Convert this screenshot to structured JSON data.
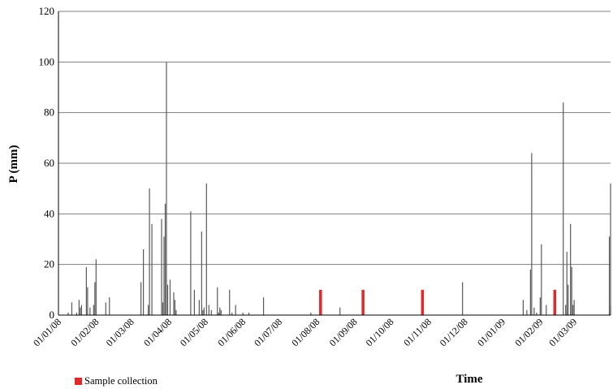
{
  "chart_data": {
    "type": "bar",
    "title": "",
    "xlabel": "Time",
    "ylabel": "P (mm)",
    "ylim": [
      0,
      120
    ],
    "yticks": [
      "0",
      "20",
      "40",
      "60",
      "80",
      "100",
      "120"
    ],
    "xlim": [
      "2008-01-01",
      "2009-03-31"
    ],
    "xticks": [
      "01/01/08",
      "01/02/08",
      "01/03/08",
      "01/04/08",
      "01/05/08",
      "01/06/08",
      "01/07/08",
      "01/08/08",
      "01/09/08",
      "01/10/08",
      "01/11/08",
      "01/12/08",
      "01/01/09",
      "01/02/09",
      "01/03/09"
    ],
    "grid": "horizontal",
    "legend_position": "bottom-left",
    "series": [
      {
        "name": "",
        "color": "#595959",
        "points": [
          [
            "2008-01-09",
            1
          ],
          [
            "2008-01-12",
            5
          ],
          [
            "2008-01-16",
            1
          ],
          [
            "2008-01-18",
            6
          ],
          [
            "2008-01-19",
            3
          ],
          [
            "2008-01-20",
            4
          ],
          [
            "2008-01-24",
            19
          ],
          [
            "2008-01-25",
            11
          ],
          [
            "2008-01-27",
            3
          ],
          [
            "2008-01-30",
            4
          ],
          [
            "2008-01-31",
            13
          ],
          [
            "2008-02-01",
            22
          ],
          [
            "2008-02-09",
            5
          ],
          [
            "2008-02-12",
            7
          ],
          [
            "2008-03-09",
            13
          ],
          [
            "2008-03-11",
            26
          ],
          [
            "2008-03-15",
            4
          ],
          [
            "2008-03-16",
            50
          ],
          [
            "2008-03-18",
            36
          ],
          [
            "2008-03-26",
            38
          ],
          [
            "2008-03-27",
            5
          ],
          [
            "2008-03-28",
            31
          ],
          [
            "2008-03-29",
            44
          ],
          [
            "2008-03-30",
            100
          ],
          [
            "2008-03-31",
            12
          ],
          [
            "2008-04-02",
            14
          ],
          [
            "2008-04-05",
            9
          ],
          [
            "2008-04-06",
            6
          ],
          [
            "2008-04-07",
            2
          ],
          [
            "2008-04-19",
            41
          ],
          [
            "2008-04-22",
            10
          ],
          [
            "2008-04-26",
            6
          ],
          [
            "2008-04-28",
            33
          ],
          [
            "2008-04-29",
            2
          ],
          [
            "2008-04-30",
            3
          ],
          [
            "2008-05-02",
            52
          ],
          [
            "2008-05-04",
            4
          ],
          [
            "2008-05-06",
            2
          ],
          [
            "2008-05-11",
            11
          ],
          [
            "2008-05-12",
            1
          ],
          [
            "2008-05-13",
            3
          ],
          [
            "2008-05-14",
            2
          ],
          [
            "2008-05-21",
            10
          ],
          [
            "2008-05-23",
            1
          ],
          [
            "2008-05-26",
            4
          ],
          [
            "2008-06-01",
            1
          ],
          [
            "2008-06-06",
            1
          ],
          [
            "2008-06-18",
            7
          ],
          [
            "2008-07-27",
            1
          ],
          [
            "2008-08-20",
            3
          ],
          [
            "2008-11-29",
            13
          ],
          [
            "2009-01-18",
            6
          ],
          [
            "2009-01-21",
            2
          ],
          [
            "2009-01-24",
            18
          ],
          [
            "2009-01-25",
            64
          ],
          [
            "2009-01-27",
            3
          ],
          [
            "2009-01-29",
            1
          ],
          [
            "2009-02-01",
            7
          ],
          [
            "2009-02-02",
            28
          ],
          [
            "2009-02-06",
            4
          ],
          [
            "2009-02-20",
            84
          ],
          [
            "2009-02-22",
            4
          ],
          [
            "2009-02-23",
            25
          ],
          [
            "2009-02-24",
            12
          ],
          [
            "2009-02-26",
            36
          ],
          [
            "2009-02-27",
            19
          ],
          [
            "2009-02-28",
            4
          ],
          [
            "2009-03-01",
            6
          ],
          [
            "2009-03-30",
            1
          ],
          [
            "2009-03-30",
            31
          ],
          [
            "2009-03-31",
            52
          ],
          [
            "2009-03-31",
            4
          ]
        ]
      },
      {
        "name": "Sample collection",
        "color": "#e2282b",
        "points": [
          [
            "2008-08-04",
            10
          ],
          [
            "2008-09-08",
            10
          ],
          [
            "2008-10-27",
            10
          ],
          [
            "2009-02-13",
            10
          ]
        ]
      }
    ]
  }
}
